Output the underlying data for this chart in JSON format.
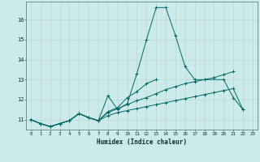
{
  "xlabel": "Humidex (Indice chaleur)",
  "xlim": [
    -0.5,
    23.5
  ],
  "ylim": [
    10.5,
    16.9
  ],
  "background_color": "#cdeaea",
  "line_color": "#006666",
  "series": [
    [
      11.0,
      10.8,
      10.65,
      10.8,
      10.95,
      11.3,
      11.1,
      10.95,
      12.2,
      11.5,
      11.8,
      13.3,
      15.0,
      16.6,
      16.6,
      15.2,
      13.65,
      13.0,
      13.0,
      null,
      13.0,
      12.1,
      11.5,
      null
    ],
    [
      11.0,
      10.8,
      10.65,
      10.8,
      10.95,
      11.3,
      11.1,
      10.95,
      11.4,
      11.6,
      12.1,
      12.4,
      12.8,
      13.0,
      null,
      null,
      null,
      null,
      null,
      null,
      null,
      null,
      null,
      null
    ],
    [
      11.0,
      10.8,
      10.65,
      10.8,
      10.95,
      11.3,
      11.1,
      10.95,
      11.35,
      11.55,
      11.75,
      11.95,
      12.1,
      12.3,
      12.5,
      12.65,
      12.8,
      12.9,
      13.0,
      13.1,
      13.25,
      13.4,
      null,
      null
    ],
    [
      11.0,
      10.8,
      10.65,
      10.8,
      10.95,
      11.3,
      11.1,
      10.95,
      11.2,
      11.35,
      11.45,
      11.55,
      11.65,
      11.75,
      11.85,
      11.95,
      12.05,
      12.15,
      12.25,
      12.35,
      12.45,
      12.55,
      11.5,
      null
    ]
  ],
  "x_values": [
    0,
    1,
    2,
    3,
    4,
    5,
    6,
    7,
    8,
    9,
    10,
    11,
    12,
    13,
    14,
    15,
    16,
    17,
    18,
    19,
    20,
    21,
    22,
    23
  ],
  "yticks": [
    11,
    12,
    13,
    14,
    15,
    16
  ],
  "xticks": [
    0,
    1,
    2,
    3,
    4,
    5,
    6,
    7,
    8,
    9,
    10,
    11,
    12,
    13,
    14,
    15,
    16,
    17,
    18,
    19,
    20,
    21,
    22,
    23
  ]
}
